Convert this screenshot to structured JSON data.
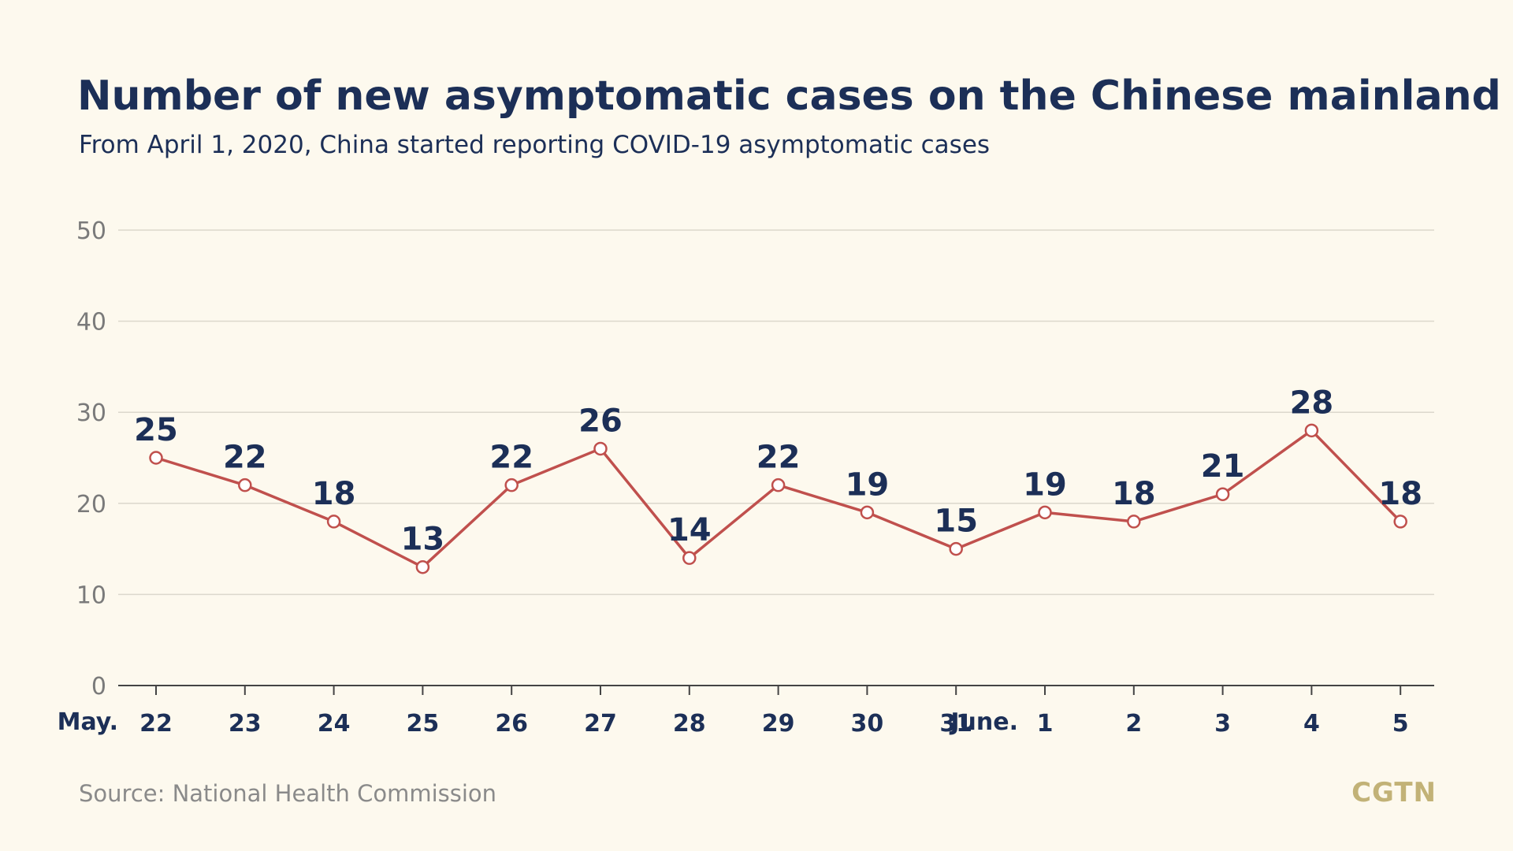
{
  "title": "Number of new asymptomatic cases on the Chinese mainland",
  "subtitle": "From April 1, 2020, China started reporting COVID-19 asymptomatic cases",
  "source": "Source: National Health Commission",
  "logo": "CGTN",
  "colors": {
    "background": "#fdf9ee",
    "title": "#1c2f57",
    "line": "#c0504d",
    "marker_fill": "#ffffff",
    "grid": "#dcd8cc",
    "axis": "#444444",
    "tick_text": "#7a7a7a",
    "logo": "#c2b277"
  },
  "chart_data": {
    "type": "line",
    "title": "Number of new asymptomatic cases on the Chinese mainland",
    "subtitle": "From April 1, 2020, China started reporting COVID-19 asymptomatic cases",
    "month_labels": [
      {
        "label": "May.",
        "at_index": 0
      },
      {
        "label": "June.",
        "at_index": 10
      }
    ],
    "categories": [
      "22",
      "23",
      "24",
      "25",
      "26",
      "27",
      "28",
      "29",
      "30",
      "31",
      "1",
      "2",
      "3",
      "4",
      "5"
    ],
    "values": [
      25,
      22,
      18,
      13,
      22,
      26,
      14,
      22,
      19,
      15,
      19,
      18,
      21,
      28,
      18
    ],
    "data_labels": [
      "25",
      "22",
      "18",
      "13",
      "22",
      "26",
      "14",
      "22",
      "19",
      "15",
      "19",
      "18",
      "21",
      "28",
      "18"
    ],
    "ylim": [
      0,
      50
    ],
    "yticks": [
      0,
      10,
      20,
      30,
      40,
      50
    ],
    "grid": true,
    "legend": "none"
  }
}
